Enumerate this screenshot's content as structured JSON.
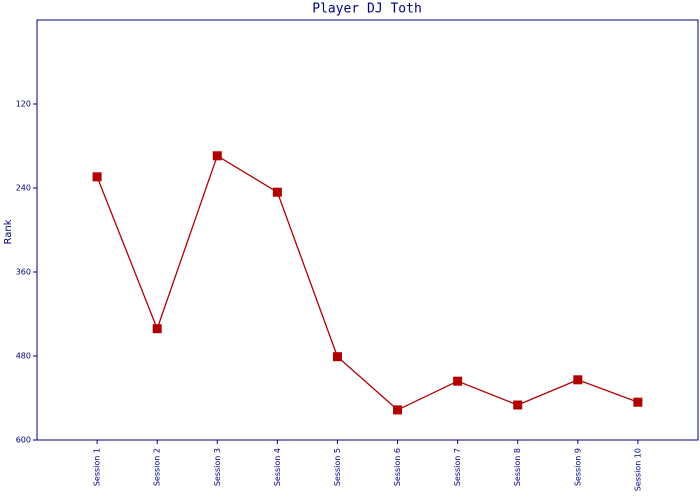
{
  "chart_data": {
    "type": "line",
    "title": "Player DJ Toth",
    "y_label": "Rank",
    "categories": [
      "Session 1",
      "Session 2",
      "Session 3",
      "Session 4",
      "Session 5",
      "Session 6",
      "Session 7",
      "Session 8",
      "Session 9",
      "Session 10"
    ],
    "values": [
      224,
      441,
      194,
      246,
      481,
      557,
      516,
      550,
      514,
      546
    ],
    "color": "#b00000",
    "marker": "square",
    "axis_color": "#000080",
    "ylim": [
      0,
      600
    ],
    "y_inverted": true,
    "yticks": [
      120,
      240,
      360,
      480,
      600
    ],
    "grid": false
  }
}
